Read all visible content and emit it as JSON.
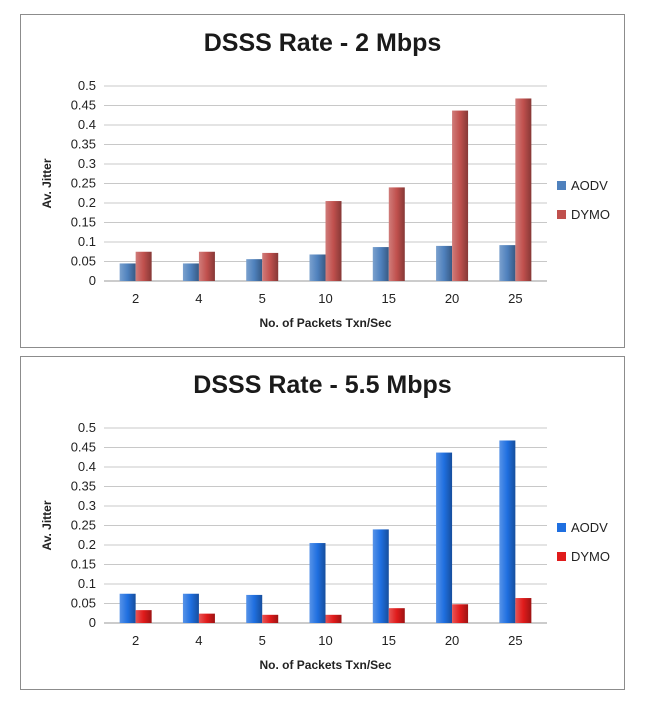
{
  "chart_data": [
    {
      "type": "bar",
      "title": "DSSS Rate - 2 Mbps",
      "xlabel": "No. of Packets Txn/Sec",
      "ylabel": "Av. Jitter",
      "categories": [
        "2",
        "4",
        "5",
        "10",
        "15",
        "20",
        "25"
      ],
      "ylim": [
        0,
        0.5
      ],
      "yticks": [
        "0",
        "0.05",
        "0.1",
        "0.15",
        "0.2",
        "0.25",
        "0.3",
        "0.35",
        "0.4",
        "0.45",
        "0.5"
      ],
      "grid": true,
      "legend_position": "right",
      "series": [
        {
          "name": "AODV",
          "color": "#4f81bd",
          "values": [
            0.045,
            0.045,
            0.056,
            0.068,
            0.087,
            0.09,
            0.092
          ]
        },
        {
          "name": "DYMO",
          "color": "#c0504d",
          "values": [
            0.075,
            0.075,
            0.072,
            0.205,
            0.24,
            0.437,
            0.468
          ]
        }
      ]
    },
    {
      "type": "bar",
      "title": "DSSS Rate - 5.5 Mbps",
      "xlabel": "No. of Packets Txn/Sec",
      "ylabel": "Av. Jitter",
      "categories": [
        "2",
        "4",
        "5",
        "10",
        "15",
        "20",
        "25"
      ],
      "ylim": [
        0,
        0.5
      ],
      "yticks": [
        "0",
        "0.05",
        "0.1",
        "0.15",
        "0.2",
        "0.25",
        "0.3",
        "0.35",
        "0.4",
        "0.45",
        "0.5"
      ],
      "grid": true,
      "legend_position": "right",
      "series": [
        {
          "name": "AODV",
          "color": "#1f6fe0",
          "values": [
            0.075,
            0.075,
            0.072,
            0.205,
            0.24,
            0.437,
            0.468
          ]
        },
        {
          "name": "DYMO",
          "color": "#e01b1b",
          "values": [
            0.033,
            0.024,
            0.021,
            0.021,
            0.038,
            0.048,
            0.064
          ]
        }
      ]
    }
  ]
}
